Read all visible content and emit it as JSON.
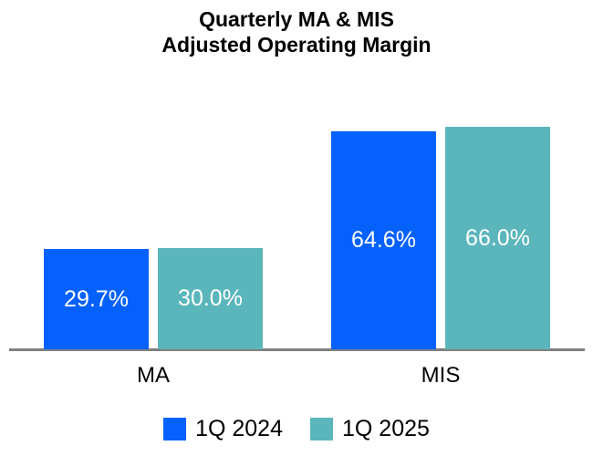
{
  "chart_data": {
    "type": "bar",
    "title": "Quarterly MA & MIS Adjusted Operating Margin",
    "title_lines": [
      "Quarterly MA & MIS",
      "Adjusted Operating Margin"
    ],
    "categories": [
      "MA",
      "MIS"
    ],
    "series": [
      {
        "name": "1Q 2024",
        "color": "#0561FB",
        "values": [
          29.7,
          64.6
        ],
        "labels": [
          "29.7%",
          "64.6%"
        ]
      },
      {
        "name": "1Q 2025",
        "color": "#5BB6BC",
        "values": [
          30.0,
          66.0
        ],
        "labels": [
          "30.0%",
          "66.0%"
        ]
      }
    ],
    "ylim": [
      0,
      70
    ],
    "grid": false,
    "legend_position": "bottom",
    "value_label_color": "#FFFFFF",
    "axis_line_color": "#808080"
  }
}
